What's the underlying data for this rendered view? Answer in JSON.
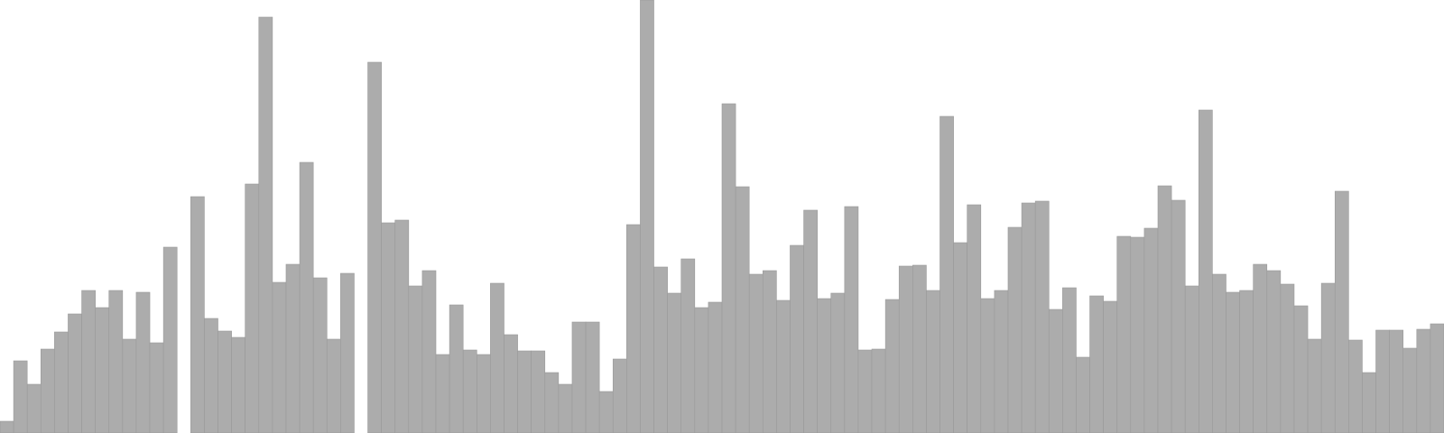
{
  "chart_data": {
    "type": "bar",
    "title": "",
    "xlabel": "",
    "ylabel": "",
    "ylim": [
      0,
      480
    ],
    "grid": false,
    "legend": "none",
    "bar_color": "#acacac",
    "bar_edge_color": "#999999",
    "values": [
      13,
      80,
      54,
      93,
      112,
      132,
      158,
      139,
      158,
      104,
      156,
      100,
      206,
      0,
      262,
      127,
      113,
      106,
      276,
      461,
      167,
      187,
      300,
      172,
      104,
      177,
      0,
      411,
      233,
      236,
      163,
      180,
      87,
      142,
      92,
      87,
      166,
      109,
      91,
      91,
      67,
      54,
      123,
      123,
      46,
      82,
      231,
      480,
      184,
      155,
      193,
      139,
      145,
      365,
      273,
      176,
      180,
      147,
      208,
      247,
      149,
      155,
      251,
      92,
      93,
      148,
      185,
      186,
      158,
      351,
      211,
      253,
      149,
      158,
      228,
      255,
      257,
      137,
      161,
      84,
      152,
      146,
      218,
      217,
      227,
      274,
      258,
      163,
      358,
      176,
      156,
      158,
      187,
      180,
      165,
      141,
      104,
      166,
      268,
      103,
      67,
      114,
      114,
      94,
      115,
      121
    ]
  }
}
